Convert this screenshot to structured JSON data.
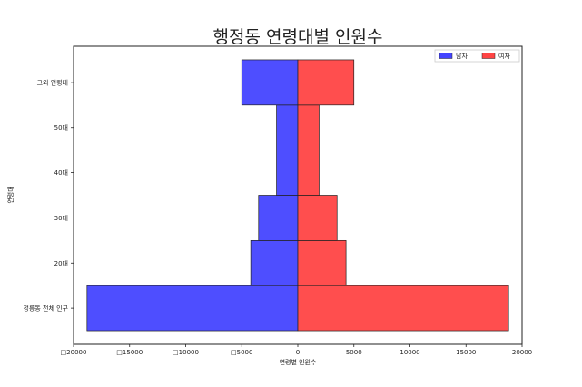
{
  "chart_data": {
    "type": "bar",
    "orientation": "horizontal",
    "title": "행정동 연령대별 인원수",
    "xlabel": "연령별 인원수",
    "ylabel": "연령대",
    "categories": [
      "정릉동 전체 인구",
      "20대",
      "30대",
      "40대",
      "50대",
      "그외 연령대"
    ],
    "series": [
      {
        "name": "남자",
        "color": "#4444ff",
        "values": [
          -18800,
          -4200,
          -3500,
          -1900,
          -1900,
          -5000
        ]
      },
      {
        "name": "여자",
        "color": "#ff4444",
        "values": [
          18800,
          4300,
          3500,
          1900,
          1900,
          5000
        ]
      }
    ],
    "xlim": [
      -20000,
      20000
    ],
    "xticks": [
      -20000,
      -15000,
      -10000,
      -5000,
      0,
      5000,
      10000,
      15000,
      20000
    ],
    "xtick_labels": [
      "□20000",
      "□15000",
      "□10000",
      "□5000",
      "0",
      "5000",
      "10000",
      "15000",
      "20000"
    ],
    "grid": false,
    "legend_position": "top-right"
  }
}
